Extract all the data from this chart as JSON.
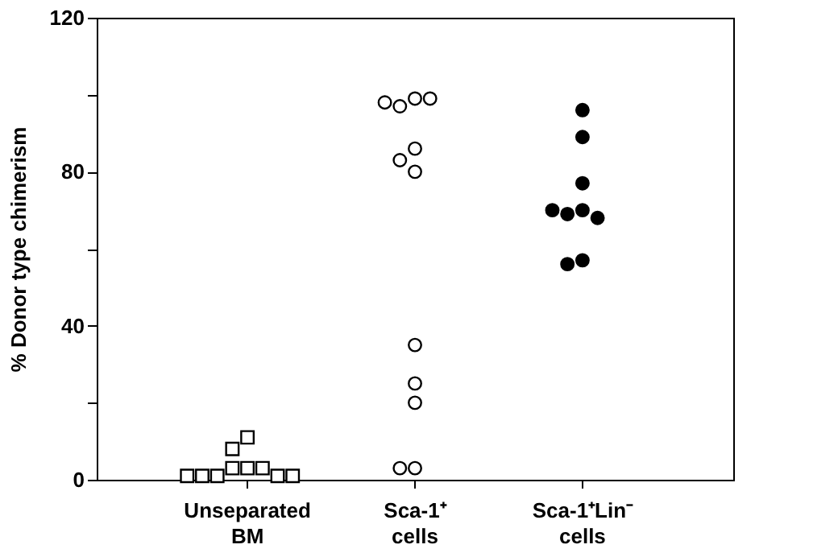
{
  "chart_data": {
    "type": "scatter",
    "ylabel": "% Donor type chimerism",
    "categories": [
      "Unseparated BM",
      "Sca-1⁺ cells",
      "Sca-1⁺Lin⁻ cells"
    ],
    "series": [
      {
        "x": [
          "Unseparated BM",
          "Unseparated BM",
          "Unseparated BM",
          "Unseparated BM",
          "Unseparated BM",
          "Unseparated BM",
          "Unseparated BM",
          "Unseparated BM",
          "Unseparated BM",
          "Unseparated BM"
        ],
        "values": [
          11,
          8,
          3,
          3,
          3,
          1,
          1,
          1,
          1,
          1
        ],
        "color": "#ffffff",
        "marker": "square"
      },
      {
        "x": [
          "Sca-1⁺ cells",
          "Sca-1⁺ cells",
          "Sca-1⁺ cells",
          "Sca-1⁺ cells",
          "Sca-1⁺ cells",
          "Sca-1⁺ cells",
          "Sca-1⁺ cells",
          "Sca-1⁺ cells",
          "Sca-1⁺ cells",
          "Sca-1⁺ cells",
          "Sca-1⁺ cells",
          "Sca-1⁺ cells"
        ],
        "values": [
          99,
          97,
          99,
          98,
          86,
          83,
          80,
          35,
          25,
          20,
          3,
          3
        ],
        "color": "#ffffff",
        "marker": "circle"
      },
      {
        "x": [
          "Sca-1⁺Lin⁻ cells",
          "Sca-1⁺Lin⁻ cells",
          "Sca-1⁺Lin⁻ cells",
          "Sca-1⁺Lin⁻ cells",
          "Sca-1⁺Lin⁻ cells",
          "Sca-1⁺Lin⁻ cells",
          "Sca-1⁺Lin⁻ cells",
          "Sca-1⁺Lin⁻ cells",
          "Sca-1⁺Lin⁻ cells"
        ],
        "values": [
          96,
          89,
          77,
          70,
          69,
          68,
          70,
          57,
          56
        ],
        "color": "#000000",
        "marker": "circle"
      }
    ],
    "ylim": [
      0,
      120
    ],
    "yticks": [
      0,
      {
        "value": 20,
        "label": null
      },
      40,
      {
        "value": 60,
        "label": null
      },
      80,
      {
        "value": 100,
        "label": null
      },
      120
    ],
    "grid": false
  }
}
